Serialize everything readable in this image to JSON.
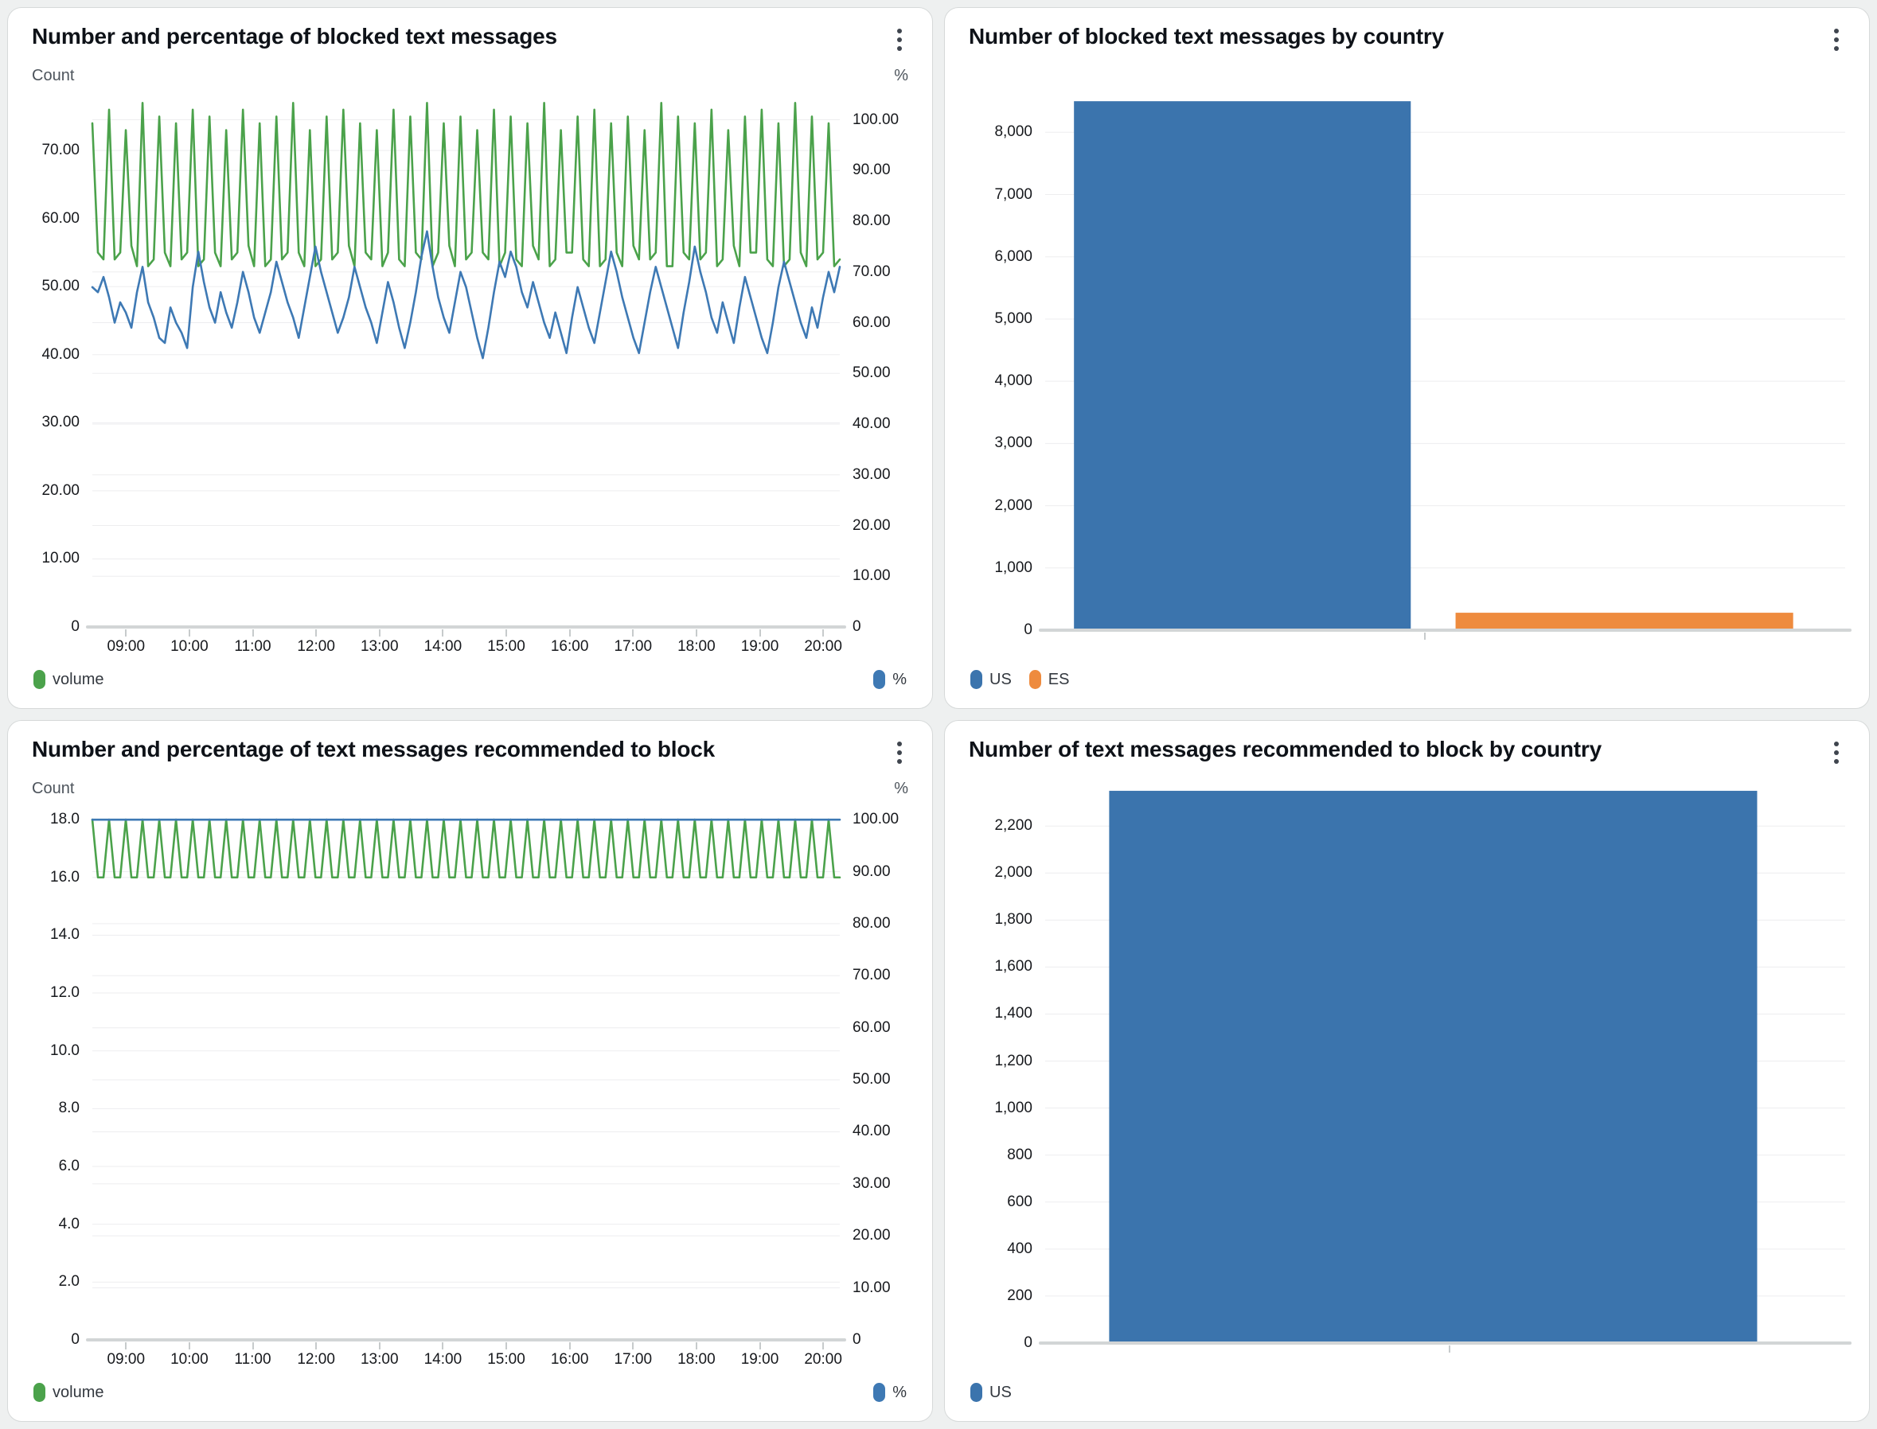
{
  "ui": {
    "menu_icon": "kebab-vertical"
  },
  "colors": {
    "volume_green": "#4ba24b",
    "percent_blue": "#3e79b4",
    "bar_blue": "#3b74ad",
    "bar_orange": "#ee8b3e",
    "grid": "#ededef",
    "axis": "#d2d5d6"
  },
  "chart_data": [
    {
      "type": "line",
      "title": "Number and percentage of blocked text messages",
      "left_axis_label": "Count",
      "right_axis_label": "%",
      "legend": [
        {
          "label": "volume",
          "color": "#4ba24b"
        },
        {
          "label": "%",
          "color": "#3e79b4"
        }
      ],
      "left_ticks": {
        "labels": [
          "70.00",
          "60.00",
          "50.00",
          "40.00",
          "30.00",
          "20.00",
          "10.00",
          "0"
        ],
        "values": [
          70,
          60,
          50,
          40,
          30,
          20,
          10,
          0
        ]
      },
      "left_max": 77.5,
      "right_ticks": {
        "labels": [
          "100.00",
          "90.00",
          "80.00",
          "70.00",
          "60.00",
          "50.00",
          "40.00",
          "30.00",
          "20.00",
          "10.00",
          "0"
        ],
        "values": [
          100,
          90,
          80,
          70,
          60,
          50,
          40,
          30,
          20,
          10,
          0
        ]
      },
      "right_max": 104,
      "x_ticks": [
        "09:00",
        "10:00",
        "11:00",
        "12:00",
        "13:00",
        "14:00",
        "15:00",
        "16:00",
        "17:00",
        "18:00",
        "19:00",
        "20:00"
      ],
      "x_tick_start_pct": 4.5,
      "x_tick_step_pct": 8.48,
      "series": [
        {
          "name": "volume",
          "axis": "left",
          "color": "#4ba24b",
          "values": [
            74,
            55,
            54,
            76,
            54,
            55,
            73,
            56,
            53,
            77,
            53,
            54,
            75,
            55,
            53,
            74,
            54,
            55,
            76,
            53,
            54,
            75,
            55,
            53,
            73,
            54,
            55,
            76,
            56,
            53,
            74,
            53,
            54,
            75,
            54,
            55,
            77,
            55,
            53,
            73,
            53,
            54,
            75,
            54,
            55,
            76,
            56,
            53,
            74,
            55,
            54,
            73,
            53,
            55,
            76,
            54,
            53,
            75,
            55,
            54,
            77,
            53,
            55,
            74,
            56,
            53,
            75,
            54,
            55,
            73,
            55,
            54,
            76,
            53,
            55,
            75,
            54,
            53,
            74,
            56,
            54,
            77,
            53,
            54,
            73,
            55,
            55,
            75,
            54,
            53,
            76,
            53,
            54,
            74,
            55,
            53,
            75,
            56,
            54,
            73,
            54,
            55,
            77,
            53,
            53,
            75,
            55,
            54,
            74,
            54,
            55,
            76,
            53,
            54,
            73,
            56,
            53,
            75,
            55,
            55,
            76,
            54,
            53,
            74,
            53,
            54,
            77,
            55,
            53,
            75,
            54,
            55,
            74,
            53,
            54
          ]
        },
        {
          "name": "%",
          "axis": "right",
          "color": "#3e79b4",
          "values": [
            67,
            66,
            69,
            65,
            60,
            64,
            62,
            59,
            66,
            71,
            64,
            61,
            57,
            56,
            63,
            60,
            58,
            55,
            67,
            74,
            68,
            63,
            60,
            66,
            62,
            59,
            64,
            70,
            66,
            61,
            58,
            62,
            66,
            72,
            68,
            64,
            61,
            57,
            63,
            69,
            75,
            70,
            66,
            62,
            58,
            61,
            65,
            71,
            67,
            63,
            60,
            56,
            62,
            68,
            64,
            59,
            55,
            60,
            66,
            73,
            78,
            71,
            65,
            61,
            58,
            64,
            70,
            67,
            62,
            57,
            53,
            59,
            66,
            72,
            69,
            74,
            71,
            66,
            63,
            68,
            64,
            60,
            57,
            62,
            58,
            54,
            61,
            67,
            63,
            59,
            56,
            62,
            68,
            74,
            70,
            65,
            61,
            57,
            54,
            60,
            66,
            71,
            67,
            63,
            59,
            55,
            62,
            68,
            75,
            70,
            66,
            61,
            58,
            64,
            60,
            56,
            63,
            69,
            65,
            61,
            57,
            54,
            60,
            67,
            72,
            68,
            64,
            60,
            57,
            63,
            59,
            65,
            70,
            66,
            71
          ]
        }
      ]
    },
    {
      "type": "bar",
      "title": "Number of blocked text messages by country",
      "legend": [
        {
          "label": "US",
          "color": "#3b74ad"
        },
        {
          "label": "ES",
          "color": "#ee8b3e"
        }
      ],
      "y_ticks": {
        "labels": [
          "8,000",
          "7,000",
          "6,000",
          "5,000",
          "4,000",
          "3,000",
          "2,000",
          "1,000",
          "0"
        ],
        "values": [
          8000,
          7000,
          6000,
          5000,
          4000,
          3000,
          2000,
          1000,
          0
        ]
      },
      "y_max": 8950,
      "bars": [
        {
          "label": "US",
          "value": 8500,
          "color": "#3b74ad",
          "x_pct": 3.6,
          "w_pct": 42.1
        },
        {
          "label": "ES",
          "value": 280,
          "color": "#ee8b3e",
          "x_pct": 51.3,
          "w_pct": 42.2
        }
      ],
      "x_axis_ticks_pct": [
        47.5
      ]
    },
    {
      "type": "line",
      "title": "Number and percentage of text messages recommended to block",
      "left_axis_label": "Count",
      "right_axis_label": "%",
      "legend": [
        {
          "label": "volume",
          "color": "#4ba24b"
        },
        {
          "label": "%",
          "color": "#3e79b4"
        }
      ],
      "left_ticks": {
        "labels": [
          "18.0",
          "16.0",
          "14.0",
          "12.0",
          "10.0",
          "8.0",
          "6.0",
          "4.0",
          "2.0",
          "0"
        ],
        "values": [
          18,
          16,
          14,
          12,
          10,
          8,
          6,
          4,
          2,
          0
        ]
      },
      "left_max": 18.25,
      "right_ticks": {
        "labels": [
          "100.00",
          "90.00",
          "80.00",
          "70.00",
          "60.00",
          "50.00",
          "40.00",
          "30.00",
          "20.00",
          "10.00",
          "0"
        ],
        "values": [
          100,
          90,
          80,
          70,
          60,
          50,
          40,
          30,
          20,
          10,
          0
        ]
      },
      "right_max": 101.4,
      "x_ticks": [
        "09:00",
        "10:00",
        "11:00",
        "12:00",
        "13:00",
        "14:00",
        "15:00",
        "16:00",
        "17:00",
        "18:00",
        "19:00",
        "20:00"
      ],
      "x_tick_start_pct": 4.5,
      "x_tick_step_pct": 8.48,
      "series": [
        {
          "name": "volume",
          "axis": "left",
          "color": "#4ba24b",
          "values": [
            18,
            16,
            16,
            18,
            16,
            16,
            18,
            16,
            16,
            18,
            16,
            16,
            18,
            16,
            16,
            18,
            16,
            16,
            18,
            16,
            16,
            18,
            16,
            16,
            18,
            16,
            16,
            18,
            16,
            16,
            18,
            16,
            16,
            18,
            16,
            16,
            18,
            16,
            16,
            18,
            16,
            16,
            18,
            16,
            16,
            18,
            16,
            16,
            18,
            16,
            16,
            18,
            16,
            16,
            18,
            16,
            16,
            18,
            16,
            16,
            18,
            16,
            16,
            18,
            16,
            16,
            18,
            16,
            16,
            18,
            16,
            16,
            18,
            16,
            16,
            18,
            16,
            16,
            18,
            16,
            16,
            18,
            16,
            16,
            18,
            16,
            16,
            18,
            16,
            16,
            18,
            16,
            16,
            18,
            16,
            16,
            18,
            16,
            16,
            18,
            16,
            16,
            18,
            16,
            16,
            18,
            16,
            16,
            18,
            16,
            16,
            18,
            16,
            16,
            18,
            16,
            16,
            18,
            16,
            16,
            18,
            16,
            16,
            18,
            16,
            16,
            18,
            16,
            16,
            18,
            16,
            16,
            18,
            16,
            16
          ]
        },
        {
          "name": "%",
          "axis": "right",
          "color": "#3e79b4",
          "values": [
            100,
            100
          ]
        }
      ]
    },
    {
      "type": "bar",
      "title": "Number of text messages recommended to block by country",
      "legend": [
        {
          "label": "US",
          "color": "#3b74ad"
        }
      ],
      "y_ticks": {
        "labels": [
          "2,200",
          "2,000",
          "1,800",
          "1,600",
          "1,400",
          "1,200",
          "1,000",
          "800",
          "600",
          "400",
          "200",
          "0"
        ],
        "values": [
          2200,
          2000,
          1800,
          1600,
          1400,
          1200,
          1000,
          800,
          600,
          400,
          200,
          0
        ]
      },
      "y_max": 2370,
      "bars": [
        {
          "label": "US",
          "value": 2350,
          "color": "#3b74ad",
          "x_pct": 8,
          "w_pct": 81
        }
      ],
      "x_axis_ticks_pct": [
        50.5
      ]
    }
  ]
}
